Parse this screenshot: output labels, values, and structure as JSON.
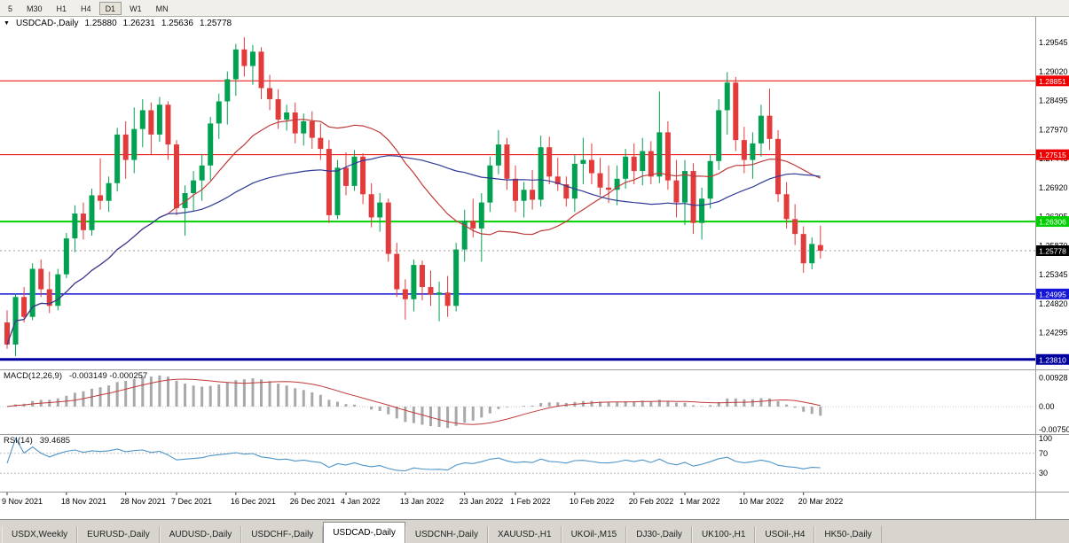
{
  "toolbar": {
    "timeframes": [
      "5",
      "M30",
      "H1",
      "H4",
      "D1",
      "W1",
      "MN"
    ],
    "active": "D1"
  },
  "header": {
    "dropdown_icon": "▼",
    "symbol": "USDCAD-,Daily",
    "open": "1.25880",
    "high": "1.26231",
    "low": "1.25636",
    "close": "1.25778"
  },
  "panes": {
    "macd": {
      "name": "MACD(12,26,9)",
      "values": "-0.003149 -0.000257"
    },
    "rsi": {
      "name": "RSI(14)",
      "value": "39.4685"
    }
  },
  "tabs": {
    "items": [
      "USDX,Weekly",
      "EURUSD-,Daily",
      "AUDUSD-,Daily",
      "USDCHF-,Daily",
      "USDCAD-,Daily",
      "USDCNH-,Daily",
      "XAUUSD-,H1",
      "UKOil-,M15",
      "DJ30-,Daily",
      "UK100-,H1",
      "USOil-,H4",
      "HK50-,Daily"
    ],
    "active": "USDCAD-,Daily"
  },
  "chart_data": {
    "type": "candlestick",
    "title": "USDCAD-,Daily",
    "price_range": {
      "top": 1.3001,
      "bottom": 1.2363
    },
    "colors": {
      "bull": "#00A150",
      "bear": "#E23B3B",
      "ma_fast": "#C03A3A",
      "ma_slow": "#2F3A96",
      "macd_hist": "#A8A8A8",
      "macd_signal": "#C03A3A",
      "rsi_line": "#4E94C8"
    },
    "price_axis": [
      "1.29545",
      "1.29020",
      "1.28495",
      "1.27970",
      "1.27445",
      "1.26920",
      "1.26395",
      "1.25870",
      "1.25345",
      "1.24820",
      "1.24295",
      "1.23770"
    ],
    "levels": [
      {
        "price": 1.28851,
        "label": "1.28851",
        "color": "#EE0000",
        "line_width": 1
      },
      {
        "price": 1.27515,
        "label": "1.27515",
        "color": "#EE0000",
        "line_width": 1
      },
      {
        "price": 1.26306,
        "label": "1.26306",
        "color": "#00D000",
        "line_width": 2
      },
      {
        "price": 1.24995,
        "label": "1.24995",
        "color": "#1515D9",
        "line_width": 1.5
      },
      {
        "price": 1.2381,
        "label": "1.23810",
        "color": "#0000A0",
        "line_width": 3
      }
    ],
    "current_price": {
      "price": 1.25778,
      "label": "1.25778",
      "color": "#000000"
    },
    "moving_averages": [
      {
        "type": "sma",
        "period": 20,
        "color_key": "ma_fast"
      },
      {
        "type": "sma",
        "period": 40,
        "color_key": "ma_slow"
      }
    ],
    "macd": {
      "fast": 12,
      "slow": 26,
      "signal": 9,
      "axis": [
        {
          "label": "0.00928",
          "value": 0.00928
        },
        {
          "label": "0.00",
          "value": 0
        },
        {
          "label": "-0.00750",
          "value": -0.0075
        }
      ]
    },
    "rsi": {
      "period": 14,
      "levels": [
        70,
        30
      ],
      "axis": [
        {
          "label": "100",
          "value": 100
        },
        {
          "label": "70",
          "value": 70
        },
        {
          "label": "30",
          "value": 30
        }
      ]
    },
    "date_ticks": [
      {
        "label": "9 Nov 2021",
        "bar": 0
      },
      {
        "label": "18 Nov 2021",
        "bar": 7
      },
      {
        "label": "28 Nov 2021",
        "bar": 14
      },
      {
        "label": "7 Dec 2021",
        "bar": 20
      },
      {
        "label": "16 Dec 2021",
        "bar": 27
      },
      {
        "label": "26 Dec 2021",
        "bar": 34
      },
      {
        "label": "4 Jan 2022",
        "bar": 40
      },
      {
        "label": "13 Jan 2022",
        "bar": 47
      },
      {
        "label": "23 Jan 2022",
        "bar": 54
      },
      {
        "label": "1 Feb 2022",
        "bar": 60
      },
      {
        "label": "10 Feb 2022",
        "bar": 67
      },
      {
        "label": "20 Feb 2022",
        "bar": 74
      },
      {
        "label": "1 Mar 2022",
        "bar": 80
      },
      {
        "label": "10 Mar 2022",
        "bar": 87
      },
      {
        "label": "20 Mar 2022",
        "bar": 94
      }
    ],
    "bars": [
      [
        1.2448,
        1.247,
        1.24,
        1.2408
      ],
      [
        1.2408,
        1.25,
        1.2387,
        1.2494
      ],
      [
        1.2494,
        1.2512,
        1.2448,
        1.2458
      ],
      [
        1.2458,
        1.2555,
        1.2452,
        1.2545
      ],
      [
        1.2545,
        1.2562,
        1.2494,
        1.2508
      ],
      [
        1.2508,
        1.254,
        1.2465,
        1.2478
      ],
      [
        1.2478,
        1.2545,
        1.247,
        1.2535
      ],
      [
        1.2535,
        1.261,
        1.2528,
        1.26
      ],
      [
        1.26,
        1.266,
        1.2575,
        1.2645
      ],
      [
        1.2645,
        1.2665,
        1.2598,
        1.2615
      ],
      [
        1.2615,
        1.269,
        1.2605,
        1.2678
      ],
      [
        1.2678,
        1.2745,
        1.2652,
        1.2668
      ],
      [
        1.2668,
        1.2712,
        1.2648,
        1.27
      ],
      [
        1.27,
        1.28,
        1.2685,
        1.2788
      ],
      [
        1.2788,
        1.2812,
        1.2708,
        1.2742
      ],
      [
        1.2742,
        1.2837,
        1.2718,
        1.2798
      ],
      [
        1.2798,
        1.2852,
        1.2765,
        1.2832
      ],
      [
        1.2832,
        1.2846,
        1.2752,
        1.2788
      ],
      [
        1.2788,
        1.2856,
        1.2775,
        1.2842
      ],
      [
        1.2842,
        1.2848,
        1.2742,
        1.277
      ],
      [
        1.277,
        1.2778,
        1.2642,
        1.2655
      ],
      [
        1.2655,
        1.2696,
        1.2605,
        1.2682
      ],
      [
        1.2682,
        1.2722,
        1.265,
        1.2705
      ],
      [
        1.2705,
        1.2752,
        1.2668,
        1.2732
      ],
      [
        1.2732,
        1.282,
        1.2705,
        1.2808
      ],
      [
        1.2808,
        1.2862,
        1.278,
        1.2848
      ],
      [
        1.2848,
        1.2902,
        1.2806,
        1.2888
      ],
      [
        1.2888,
        1.2952,
        1.2858,
        1.2942
      ],
      [
        1.2942,
        1.2964,
        1.2893,
        1.2912
      ],
      [
        1.2912,
        1.295,
        1.2878,
        1.2938
      ],
      [
        1.2938,
        1.2946,
        1.2852,
        1.2872
      ],
      [
        1.2872,
        1.2896,
        1.2832,
        1.2852
      ],
      [
        1.2852,
        1.287,
        1.2798,
        1.2815
      ],
      [
        1.2815,
        1.2842,
        1.2795,
        1.2828
      ],
      [
        1.2828,
        1.2846,
        1.2772,
        1.279
      ],
      [
        1.279,
        1.2826,
        1.2768,
        1.2812
      ],
      [
        1.2812,
        1.283,
        1.2762,
        1.2782
      ],
      [
        1.2782,
        1.2808,
        1.2742,
        1.2762
      ],
      [
        1.2762,
        1.2778,
        1.2628,
        1.2642
      ],
      [
        1.2642,
        1.2742,
        1.2635,
        1.2728
      ],
      [
        1.2728,
        1.2756,
        1.2678,
        1.2695
      ],
      [
        1.2695,
        1.276,
        1.2686,
        1.2748
      ],
      [
        1.2748,
        1.2754,
        1.2662,
        1.268
      ],
      [
        1.268,
        1.27,
        1.262,
        1.2638
      ],
      [
        1.2638,
        1.2682,
        1.2612,
        1.2665
      ],
      [
        1.2665,
        1.2672,
        1.2558,
        1.2572
      ],
      [
        1.2572,
        1.2592,
        1.2494,
        1.2508
      ],
      [
        1.2508,
        1.2526,
        1.2453,
        1.249
      ],
      [
        1.249,
        1.2562,
        1.2468,
        1.2552
      ],
      [
        1.2552,
        1.256,
        1.2488,
        1.2512
      ],
      [
        1.2512,
        1.2542,
        1.2478,
        1.2498
      ],
      [
        1.2498,
        1.2522,
        1.245,
        1.2502
      ],
      [
        1.2502,
        1.2532,
        1.2458,
        1.2478
      ],
      [
        1.2478,
        1.2592,
        1.2468,
        1.258
      ],
      [
        1.258,
        1.2652,
        1.2558,
        1.2632
      ],
      [
        1.2632,
        1.2672,
        1.2602,
        1.2618
      ],
      [
        1.2618,
        1.2682,
        1.2558,
        1.2665
      ],
      [
        1.2665,
        1.2748,
        1.2648,
        1.2732
      ],
      [
        1.2732,
        1.2796,
        1.2716,
        1.277
      ],
      [
        1.277,
        1.2782,
        1.2688,
        1.2708
      ],
      [
        1.2708,
        1.2732,
        1.2648,
        1.2668
      ],
      [
        1.2668,
        1.2702,
        1.2638,
        1.2688
      ],
      [
        1.2688,
        1.2724,
        1.2652,
        1.267
      ],
      [
        1.267,
        1.2786,
        1.2658,
        1.2765
      ],
      [
        1.2765,
        1.2784,
        1.2698,
        1.2712
      ],
      [
        1.2712,
        1.2746,
        1.2686,
        1.2698
      ],
      [
        1.2698,
        1.2712,
        1.2658,
        1.2672
      ],
      [
        1.2672,
        1.2752,
        1.2648,
        1.2735
      ],
      [
        1.2735,
        1.2782,
        1.2698,
        1.2742
      ],
      [
        1.2742,
        1.2772,
        1.2698,
        1.2718
      ],
      [
        1.2718,
        1.2746,
        1.2678,
        1.2692
      ],
      [
        1.2692,
        1.2732,
        1.2664,
        1.2688
      ],
      [
        1.2688,
        1.2732,
        1.266,
        1.2708
      ],
      [
        1.2708,
        1.2762,
        1.269,
        1.2748
      ],
      [
        1.2748,
        1.2772,
        1.2698,
        1.2722
      ],
      [
        1.2722,
        1.2782,
        1.2696,
        1.2758
      ],
      [
        1.2758,
        1.2776,
        1.2698,
        1.2712
      ],
      [
        1.2712,
        1.2866,
        1.27,
        1.2792
      ],
      [
        1.2792,
        1.2812,
        1.2688,
        1.2705
      ],
      [
        1.2705,
        1.2742,
        1.2638,
        1.2665
      ],
      [
        1.2665,
        1.2742,
        1.2624,
        1.2722
      ],
      [
        1.2722,
        1.2736,
        1.2608,
        1.2628
      ],
      [
        1.2628,
        1.2692,
        1.2598,
        1.2672
      ],
      [
        1.2672,
        1.2752,
        1.2654,
        1.274
      ],
      [
        1.274,
        1.2852,
        1.2724,
        1.2832
      ],
      [
        1.2832,
        1.2901,
        1.2788,
        1.2882
      ],
      [
        1.2882,
        1.2892,
        1.2758,
        1.2778
      ],
      [
        1.2778,
        1.2802,
        1.2718,
        1.2742
      ],
      [
        1.2742,
        1.2792,
        1.2708,
        1.2772
      ],
      [
        1.2772,
        1.2842,
        1.2748,
        1.2822
      ],
      [
        1.2822,
        1.2871,
        1.276,
        1.278
      ],
      [
        1.278,
        1.2796,
        1.2666,
        1.268
      ],
      [
        1.268,
        1.2702,
        1.2618,
        1.2635
      ],
      [
        1.2635,
        1.2662,
        1.2588,
        1.2608
      ],
      [
        1.2608,
        1.2622,
        1.2538,
        1.2555
      ],
      [
        1.2555,
        1.2602,
        1.2544,
        1.259
      ],
      [
        1.2588,
        1.26231,
        1.25636,
        1.25778
      ]
    ]
  }
}
